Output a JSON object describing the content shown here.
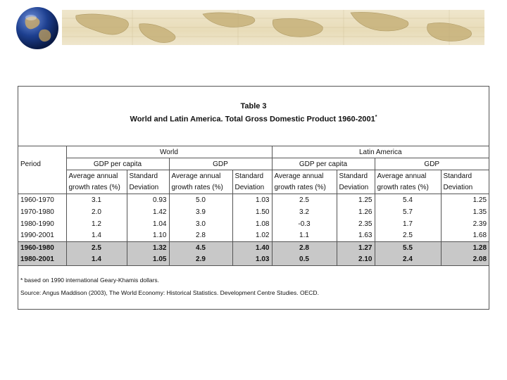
{
  "table": {
    "title": "Table 3",
    "subtitle": "World and Latin America. Total Gross Domestic Product 1960-2001",
    "subtitle_mark": "*",
    "col_period": "Period",
    "group_world": "World",
    "group_latam": "Latin America",
    "sub_gdp_pc": "GDP per capita",
    "sub_gdp": "GDP",
    "hdr_avg1": "Average annual",
    "hdr_avg2": "growth rates (%)",
    "hdr_std1": "Standard",
    "hdr_std2": "Deviation",
    "rows": [
      {
        "period": "1960-1970",
        "w_pc_avg": "3.1",
        "w_pc_sd": "0.93",
        "w_gdp_avg": "5.0",
        "w_gdp_sd": "1.03",
        "l_pc_avg": "2.5",
        "l_pc_sd": "1.25",
        "l_gdp_avg": "5.4",
        "l_gdp_sd": "1.25"
      },
      {
        "period": "1970-1980",
        "w_pc_avg": "2.0",
        "w_pc_sd": "1.42",
        "w_gdp_avg": "3.9",
        "w_gdp_sd": "1.50",
        "l_pc_avg": "3.2",
        "l_pc_sd": "1.26",
        "l_gdp_avg": "5.7",
        "l_gdp_sd": "1.35"
      },
      {
        "period": "1980-1990",
        "w_pc_avg": "1.2",
        "w_pc_sd": "1.04",
        "w_gdp_avg": "3.0",
        "w_gdp_sd": "1.08",
        "l_pc_avg": "-0.3",
        "l_pc_sd": "2.35",
        "l_gdp_avg": "1.7",
        "l_gdp_sd": "2.39"
      },
      {
        "period": "1990-2001",
        "w_pc_avg": "1.4",
        "w_pc_sd": "1.10",
        "w_gdp_avg": "2.8",
        "w_gdp_sd": "1.02",
        "l_pc_avg": "1.1",
        "l_pc_sd": "1.63",
        "l_gdp_avg": "2.5",
        "l_gdp_sd": "1.68"
      },
      {
        "period": "1960-1980",
        "w_pc_avg": "2.5",
        "w_pc_sd": "1.32",
        "w_gdp_avg": "4.5",
        "w_gdp_sd": "1.40",
        "l_pc_avg": "2.8",
        "l_pc_sd": "1.27",
        "l_gdp_avg": "5.5",
        "l_gdp_sd": "1.28"
      },
      {
        "period": "1980-2001",
        "w_pc_avg": "1.4",
        "w_pc_sd": "1.05",
        "w_gdp_avg": "2.9",
        "w_gdp_sd": "1.03",
        "l_pc_avg": "0.5",
        "l_pc_sd": "2.10",
        "l_gdp_avg": "2.4",
        "l_gdp_sd": "2.08"
      }
    ],
    "footnote": "* based on 1990 international Geary-Khamis dollars.",
    "source": "Source: Angus Maddison (2003), The World Economy: Historical Statistics. Development Centre Studies. OECD."
  },
  "colors": {
    "shaded_row": "#c8c8c8",
    "banner": "#e8dcb8",
    "globe_ocean": "#1d3f8f"
  },
  "icons": {
    "globe": "globe-icon",
    "map": "world-map-banner"
  }
}
